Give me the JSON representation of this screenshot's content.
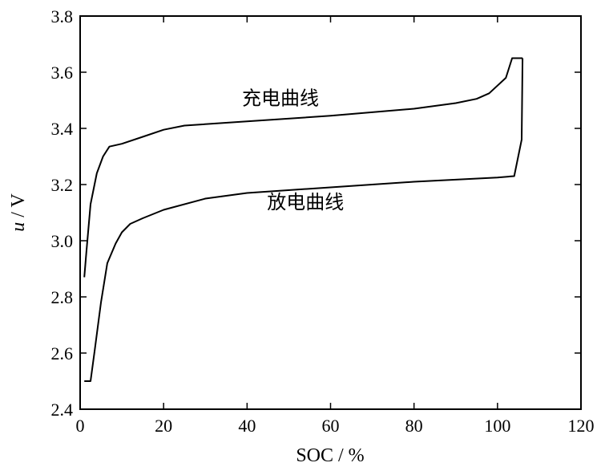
{
  "chart_data": {
    "type": "line",
    "xlabel": "SOC / %",
    "ylabel_var": "u",
    "ylabel_unit": " / V",
    "xlim": [
      0,
      120
    ],
    "ylim": [
      2.4,
      3.8
    ],
    "x_ticks": [
      0,
      20,
      40,
      60,
      80,
      100,
      120
    ],
    "y_ticks": [
      2.4,
      2.6,
      2.8,
      3.0,
      3.2,
      3.4,
      3.6,
      3.8
    ],
    "grid": false,
    "series": [
      {
        "name": "充电曲线",
        "x": [
          1,
          1.5,
          2.5,
          4,
          5.5,
          7,
          10,
          15,
          20,
          25,
          40,
          60,
          80,
          90,
          95,
          98,
          102,
          103.5,
          106
        ],
        "y": [
          2.87,
          2.96,
          3.13,
          3.24,
          3.3,
          3.335,
          3.345,
          3.37,
          3.395,
          3.41,
          3.425,
          3.445,
          3.47,
          3.49,
          3.505,
          3.525,
          3.58,
          3.65,
          3.65
        ]
      },
      {
        "name": "放电曲线",
        "x": [
          106,
          105.8,
          104,
          100,
          80,
          60,
          40,
          30,
          20,
          15,
          12,
          10,
          8.5,
          6.5,
          5,
          3.5,
          2.5,
          2.5,
          1
        ],
        "y": [
          3.65,
          3.36,
          3.23,
          3.225,
          3.21,
          3.19,
          3.17,
          3.15,
          3.11,
          3.08,
          3.06,
          3.03,
          2.99,
          2.92,
          2.78,
          2.61,
          2.5,
          2.5,
          2.5
        ]
      }
    ],
    "annotations": [
      {
        "text": "充电曲线",
        "x": 48,
        "y": 3.485
      },
      {
        "text": "放电曲线",
        "x": 54,
        "y": 3.115
      }
    ]
  }
}
